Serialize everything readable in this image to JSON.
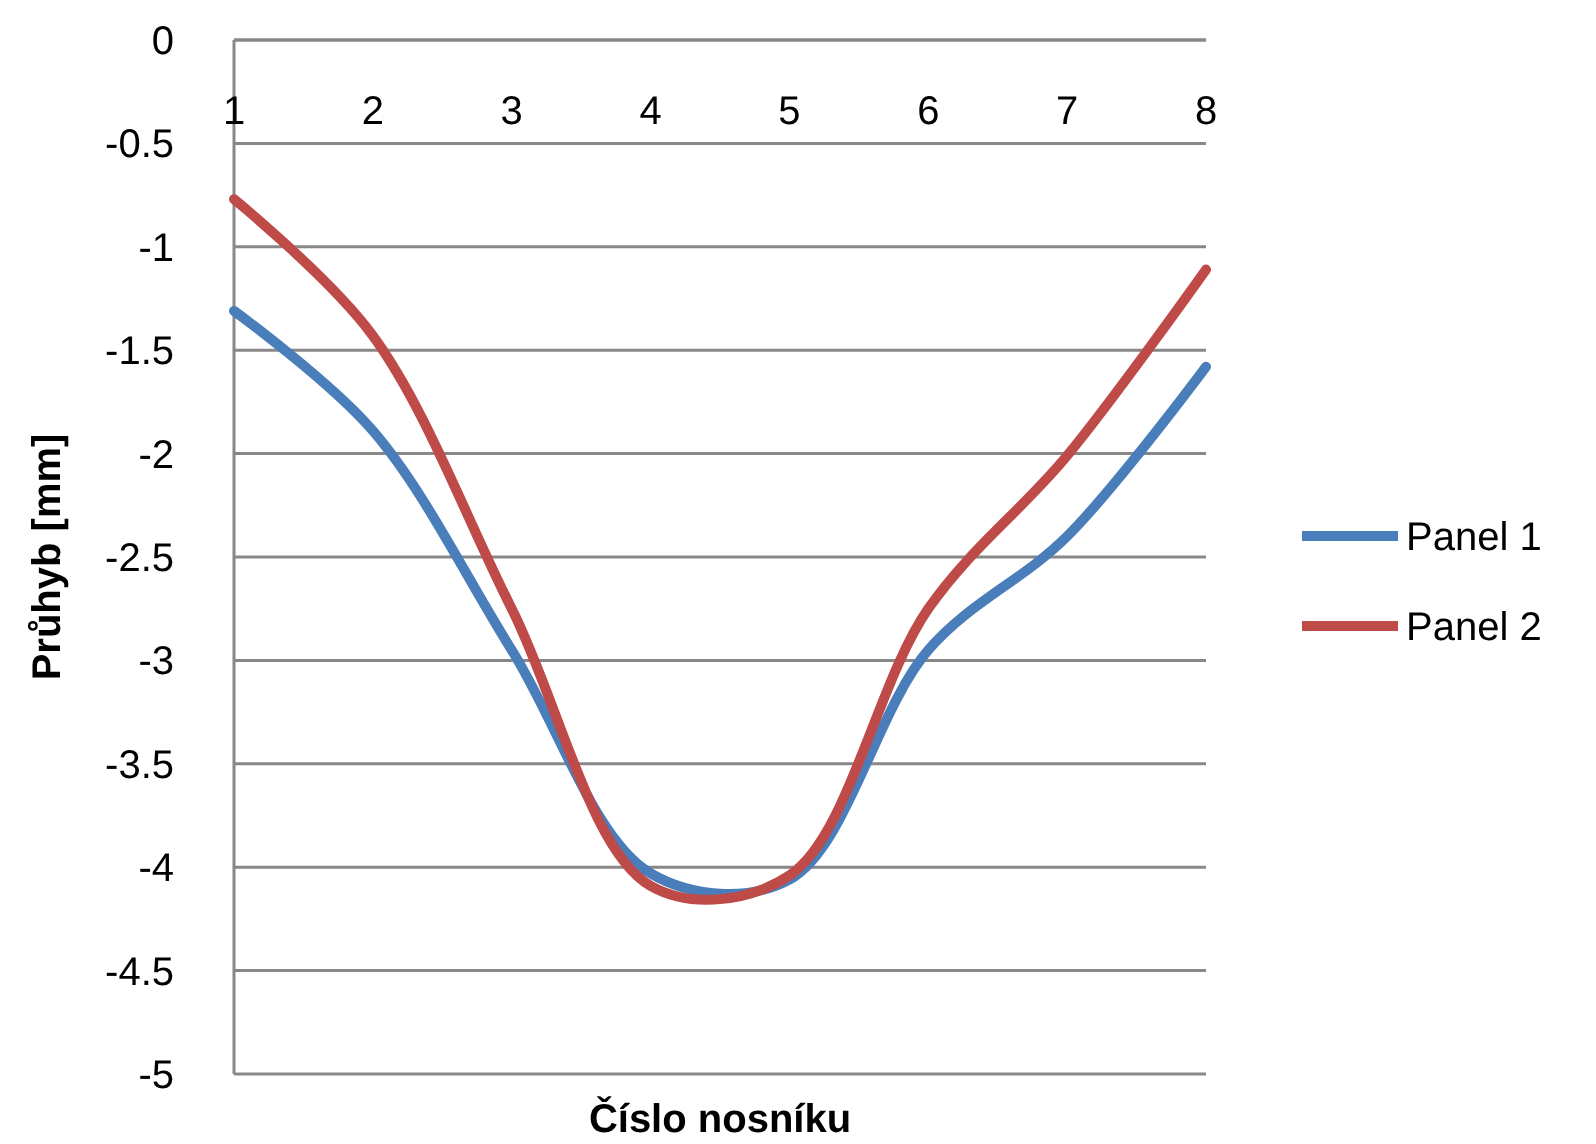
{
  "chart_data": {
    "type": "line",
    "xlabel": "Číslo nosníku",
    "ylabel": "Průhyb [mm]",
    "categories": [
      "1",
      "2",
      "3",
      "4",
      "5",
      "6",
      "7",
      "8"
    ],
    "series": [
      {
        "name": "Panel 1",
        "color": "#4a7ebb",
        "values": [
          -1.31,
          -1.89,
          -2.95,
          -4.03,
          -4.06,
          -2.95,
          -2.4,
          -1.58
        ]
      },
      {
        "name": "Panel 2",
        "color": "#be4b48",
        "values": [
          -0.77,
          -1.43,
          -2.75,
          -4.09,
          -4.04,
          -2.75,
          -2.01,
          -1.11
        ]
      }
    ],
    "ylim": [
      -5,
      0
    ],
    "yticks": [
      -5,
      -4.5,
      -4,
      -3.5,
      -3,
      -2.5,
      -2,
      -1.5,
      -1,
      -0.5,
      0
    ],
    "grid": "y",
    "legend": "right",
    "marker": "none",
    "line_style": "solid"
  }
}
